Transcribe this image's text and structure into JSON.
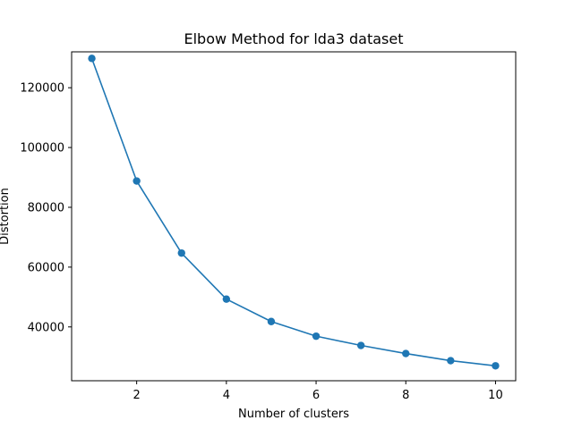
{
  "chart_data": {
    "type": "line",
    "title": "Elbow Method for lda3 dataset",
    "xlabel": "Number of clusters",
    "ylabel": "Distortion",
    "xlim": [
      0.55,
      10.45
    ],
    "ylim": [
      22000,
      132000
    ],
    "xticks": [
      2,
      4,
      6,
      8,
      10
    ],
    "yticks": [
      40000,
      60000,
      80000,
      100000,
      120000
    ],
    "grid": false,
    "series": [
      {
        "color": "#1f77b4",
        "marker": "circle",
        "x": [
          1,
          2,
          3,
          4,
          5,
          6,
          7,
          8,
          9,
          10
        ],
        "y": [
          129800,
          88800,
          64700,
          49300,
          41800,
          36900,
          33800,
          31100,
          28700,
          27000
        ]
      }
    ]
  }
}
